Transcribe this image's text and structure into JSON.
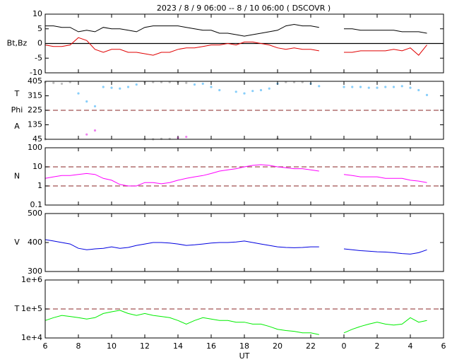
{
  "chart_data": {
    "title": "2023 / 8 / 9 06:00 -- 8 / 10 06:00 ( DSCOVR )",
    "xlabel": "UT",
    "xlim": [
      6,
      30
    ],
    "xticks": [
      6,
      8,
      10,
      12,
      14,
      16,
      18,
      20,
      22,
      {
        "value": 24,
        "label": "0"
      },
      {
        "value": 26,
        "label": "2"
      },
      {
        "value": 28,
        "label": "4"
      },
      {
        "value": 30,
        "label": "6"
      }
    ],
    "x": [
      6,
      6.5,
      7,
      7.5,
      8,
      8.5,
      9,
      9.5,
      10,
      10.5,
      11,
      11.5,
      12,
      12.5,
      13,
      13.5,
      14,
      14.5,
      15,
      15.5,
      16,
      16.5,
      17,
      17.5,
      18,
      18.5,
      19,
      19.5,
      20,
      20.5,
      21,
      21.5,
      22,
      22.5,
      23,
      23.5,
      24,
      24.5,
      25,
      25.5,
      26,
      26.5,
      27,
      27.5,
      28,
      28.5,
      29
    ],
    "panels": [
      {
        "type": "line",
        "ylabels": [
          "Bt,Bz"
        ],
        "ylim": [
          -10,
          10
        ],
        "yticks": [
          -10,
          -5,
          0,
          5,
          10
        ],
        "ref_lines": [
          0
        ],
        "ref_style": "solid",
        "ref_color": "#000000",
        "series": [
          {
            "color": "#000000",
            "values": [
              6,
              6,
              5.5,
              5.5,
              4,
              4.5,
              4,
              5.5,
              5,
              5,
              4.5,
              4,
              5.5,
              6,
              6,
              6,
              6,
              5.5,
              5,
              4.5,
              4.5,
              3.5,
              3.5,
              3,
              2.5,
              3,
              3.5,
              4,
              4.5,
              6,
              6.5,
              6,
              6,
              5.5,
              null,
              null,
              5,
              5,
              4.5,
              4.5,
              4.5,
              4.5,
              4.5,
              4,
              4,
              4,
              3.5
            ]
          },
          {
            "color": "#e00000",
            "values": [
              -0.5,
              -1,
              -1,
              -0.5,
              2,
              1,
              -2,
              -3,
              -2,
              -2,
              -3,
              -3,
              -3.5,
              -4,
              -3,
              -3,
              -2,
              -1.5,
              -1.5,
              -1,
              -0.5,
              -0.5,
              0,
              -0.5,
              0.5,
              0.5,
              0,
              -0.5,
              -1.5,
              -2,
              -1.5,
              -2,
              -2,
              -2.5,
              null,
              null,
              -3,
              -3,
              -2.5,
              -2.5,
              -2.5,
              -2.5,
              -2,
              -2.5,
              -1.5,
              -4,
              -0.5
            ]
          }
        ]
      },
      {
        "type": "scatter",
        "ylabels": [
          "T",
          "Phi",
          "A"
        ],
        "ylim": [
          45,
          405
        ],
        "yticks": [
          45,
          135,
          225,
          315,
          405
        ],
        "ref_lines": [
          225
        ],
        "ref_style": "dashed",
        "ref_color": "#a05050",
        "series": [
          {
            "color": "#87cefa",
            "values": [
              null,
              null,
              null,
              null,
              330,
              280,
              250,
              370,
              365,
              360,
              370,
              385,
              null,
              null,
              null,
              null,
              null,
              null,
              385,
              390,
              370,
              350,
              null,
              340,
              330,
              345,
              350,
              360,
              390,
              null,
              null,
              null,
              390,
              375,
              null,
              null,
              370,
              370,
              370,
              365,
              365,
              370,
              370,
              375,
              365,
              350,
              320
            ]
          },
          {
            "color": "#bebebe",
            "values": [
              400,
              395,
              390,
              400,
              null,
              null,
              null,
              null,
              null,
              null,
              null,
              null,
              400,
              400,
              400,
              400,
              400,
              395,
              null,
              null,
              null,
              null,
              null,
              null,
              null,
              null,
              null,
              null,
              null,
              400,
              400,
              400,
              null,
              null,
              null,
              null,
              null,
              null,
              null,
              null,
              null,
              null,
              null,
              null,
              null,
              null,
              null
            ]
          },
          {
            "color": "#bebebe",
            "values": [
              45,
              null,
              null,
              null,
              null,
              null,
              null,
              null,
              null,
              null,
              null,
              null,
              45,
              45,
              48,
              48,
              null,
              null,
              null,
              null,
              null,
              null,
              null,
              null,
              null,
              null,
              null,
              null,
              50,
              null,
              null,
              null,
              null,
              null,
              null,
              null,
              null,
              null,
              null,
              null,
              null,
              null,
              null,
              null,
              null,
              null,
              null
            ]
          },
          {
            "color": "#ee82ee",
            "values": [
              null,
              null,
              null,
              null,
              null,
              75,
              100,
              null,
              null,
              null,
              null,
              null,
              null,
              null,
              null,
              null,
              55,
              60,
              null,
              null,
              null,
              null,
              null,
              null,
              null,
              null,
              null,
              null,
              null,
              null,
              null,
              null,
              null,
              null,
              null,
              null,
              null,
              null,
              null,
              null,
              null,
              null,
              null,
              null,
              null,
              null,
              null
            ]
          }
        ]
      },
      {
        "type": "line",
        "ylabels": [
          "N"
        ],
        "log": true,
        "ylim": [
          0.1,
          100
        ],
        "yticks": [
          0.1,
          1,
          10,
          100
        ],
        "ref_lines": [
          1,
          10
        ],
        "ref_style": "dashed",
        "ref_color": "#a05050",
        "series": [
          {
            "color": "#ff00ff",
            "values": [
              2.5,
              3,
              3.5,
              3.5,
              4,
              4.5,
              4,
              2.5,
              2,
              1.2,
              1,
              1,
              1.5,
              1.5,
              1.3,
              1.5,
              2,
              2.5,
              3,
              3.5,
              4.5,
              6,
              7,
              8,
              10,
              12,
              13,
              12,
              10,
              9,
              8,
              8,
              7,
              6,
              null,
              null,
              4,
              3.5,
              3,
              3,
              3,
              2.5,
              2.5,
              2.5,
              2,
              1.8,
              1.5
            ]
          }
        ]
      },
      {
        "type": "line",
        "ylabels": [
          "V"
        ],
        "ylim": [
          300,
          500
        ],
        "yticks": [
          300,
          400,
          500
        ],
        "series": [
          {
            "color": "#0000e0",
            "values": [
              410,
              405,
              400,
              395,
              380,
              375,
              378,
              380,
              385,
              380,
              383,
              390,
              395,
              400,
              400,
              398,
              395,
              390,
              392,
              395,
              398,
              400,
              400,
              402,
              405,
              400,
              395,
              390,
              385,
              383,
              382,
              383,
              385,
              385,
              null,
              null,
              378,
              375,
              372,
              370,
              368,
              367,
              365,
              362,
              360,
              365,
              375
            ]
          }
        ]
      },
      {
        "type": "line",
        "ylabels": [
          "T"
        ],
        "log": true,
        "ylim": [
          10000,
          1000000
        ],
        "yticks": [
          {
            "value": 10000,
            "label": "1e+4"
          },
          {
            "value": 100000,
            "label": "1e+5"
          },
          {
            "value": 1000000,
            "label": "1e+6"
          }
        ],
        "ref_lines": [
          100000
        ],
        "ref_style": "dashed",
        "ref_color": "#a05050",
        "series": [
          {
            "color": "#00ee00",
            "values": [
              40000,
              50000,
              60000,
              55000,
              50000,
              45000,
              50000,
              70000,
              80000,
              90000,
              70000,
              60000,
              70000,
              60000,
              55000,
              50000,
              40000,
              30000,
              40000,
              50000,
              45000,
              40000,
              40000,
              35000,
              35000,
              30000,
              30000,
              25000,
              20000,
              18000,
              17000,
              15000,
              15000,
              13000,
              null,
              null,
              15000,
              20000,
              25000,
              30000,
              35000,
              30000,
              28000,
              30000,
              50000,
              35000,
              40000
            ]
          }
        ]
      }
    ]
  }
}
